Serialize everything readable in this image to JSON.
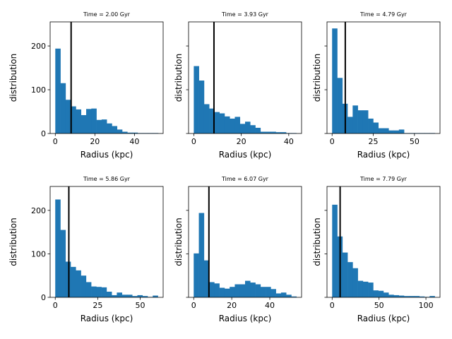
{
  "chart_data": [
    {
      "type": "bar",
      "title": "Time = 2.00 Gyr",
      "xlabel": "Radius (kpc)",
      "ylabel": "distribution",
      "xlim": [
        -2.6,
        54.5
      ],
      "ylim": [
        0,
        255
      ],
      "xticks": [
        0,
        20,
        40
      ],
      "yticks": [
        0,
        100,
        200
      ],
      "show_ytick_labels": true,
      "bin_start": 0.0,
      "bin_width": 2.6,
      "values": [
        194,
        115,
        77,
        62,
        55,
        42,
        56,
        57,
        31,
        32,
        23,
        17,
        9,
        4,
        2,
        2,
        1,
        1,
        1,
        1
      ],
      "vline_x": 8.0,
      "bar_color": "#1f77b4"
    },
    {
      "type": "bar",
      "title": "Time = 3.93 Gyr",
      "xlabel": "Radius (kpc)",
      "ylabel": "distribution",
      "xlim": [
        -2.2,
        45.4
      ],
      "ylim": [
        0,
        255
      ],
      "xticks": [
        0,
        20,
        40
      ],
      "yticks": [
        0,
        100,
        200
      ],
      "show_ytick_labels": false,
      "bin_start": 0.0,
      "bin_width": 2.16,
      "values": [
        154,
        121,
        67,
        57,
        49,
        46,
        39,
        34,
        38,
        22,
        27,
        19,
        13,
        4,
        4,
        4,
        3,
        3,
        1,
        1
      ],
      "vline_x": 8.5,
      "bar_color": "#1f77b4"
    },
    {
      "type": "bar",
      "title": "Time = 4.79 Gyr",
      "xlabel": "Radius (kpc)",
      "ylabel": "distribution",
      "xlim": [
        -3.1,
        65.5
      ],
      "ylim": [
        0,
        255
      ],
      "xticks": [
        0,
        25,
        50
      ],
      "yticks": [
        0,
        100,
        200
      ],
      "show_ytick_labels": false,
      "bin_start": 0.0,
      "bin_width": 3.12,
      "values": [
        240,
        127,
        68,
        38,
        64,
        53,
        53,
        34,
        25,
        12,
        12,
        7,
        7,
        9,
        1,
        1,
        1,
        1,
        1,
        1
      ],
      "vline_x": 8.0,
      "bar_color": "#1f77b4"
    },
    {
      "type": "bar",
      "title": "Time = 5.86 Gyr",
      "xlabel": "Radius (kpc)",
      "ylabel": "distribution",
      "xlim": [
        -3.0,
        63.5
      ],
      "ylim": [
        0,
        255
      ],
      "xticks": [
        0,
        25,
        50
      ],
      "yticks": [
        0,
        100,
        200
      ],
      "show_ytick_labels": true,
      "bin_start": 0.0,
      "bin_width": 3.02,
      "values": [
        225,
        155,
        82,
        70,
        62,
        50,
        35,
        25,
        24,
        23,
        13,
        5,
        11,
        6,
        6,
        3,
        5,
        3,
        1,
        4
      ],
      "vline_x": 8.0,
      "bar_color": "#1f77b4"
    },
    {
      "type": "bar",
      "title": "Time = 6.07 Gyr",
      "xlabel": "Radius (kpc)",
      "ylabel": "distribution",
      "xlim": [
        -2.7,
        56.7
      ],
      "ylim": [
        0,
        255
      ],
      "xticks": [
        0,
        20,
        40
      ],
      "yticks": [
        0,
        100,
        200
      ],
      "show_ytick_labels": false,
      "bin_start": 0.0,
      "bin_width": 2.7,
      "values": [
        101,
        194,
        85,
        35,
        32,
        22,
        20,
        24,
        30,
        30,
        38,
        34,
        30,
        24,
        24,
        19,
        9,
        11,
        6,
        2
      ],
      "vline_x": 8.0,
      "bar_color": "#1f77b4"
    },
    {
      "type": "bar",
      "title": "Time = 7.79 Gyr",
      "xlabel": "Radius (kpc)",
      "ylabel": "distribution",
      "xlim": [
        -5.5,
        115.0
      ],
      "ylim": [
        0,
        255
      ],
      "xticks": [
        0,
        50,
        100
      ],
      "yticks": [
        0,
        100,
        200
      ],
      "show_ytick_labels": false,
      "bin_start": 0.0,
      "bin_width": 5.47,
      "values": [
        213,
        140,
        103,
        81,
        67,
        38,
        36,
        34,
        16,
        15,
        11,
        6,
        5,
        4,
        3,
        3,
        3,
        2,
        1,
        3
      ],
      "vline_x": 8.5,
      "bar_color": "#1f77b4"
    }
  ]
}
